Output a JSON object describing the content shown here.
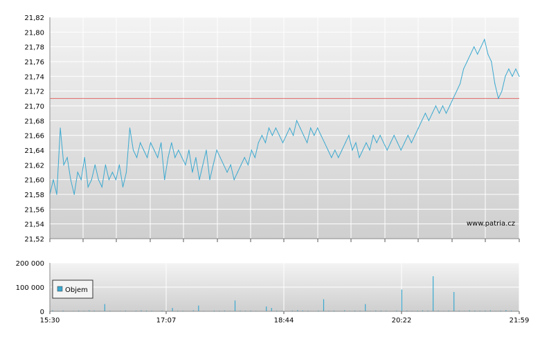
{
  "chart_data": [
    {
      "type": "line",
      "ylim": [
        21.52,
        21.82
      ],
      "y_ticks": [
        "21,82",
        "21,80",
        "21,78",
        "21,76",
        "21,74",
        "21,72",
        "21,70",
        "21,68",
        "21,66",
        "21,64",
        "21,62",
        "21,60",
        "21,58",
        "21,56",
        "21,54",
        "21,52"
      ],
      "reference_line": 21.71,
      "colors": {
        "price": "#3aa8cf",
        "reference": "#e06666",
        "grid": "#ffffff"
      },
      "watermark": "www.patria.cz",
      "series": [
        {
          "values": [
            21.58,
            21.6,
            21.58,
            21.67,
            21.62,
            21.63,
            21.6,
            21.58,
            21.61,
            21.6,
            21.63,
            21.59,
            21.6,
            21.62,
            21.6,
            21.59,
            21.62,
            21.6,
            21.61,
            21.6,
            21.62,
            21.59,
            21.61,
            21.67,
            21.64,
            21.63,
            21.65,
            21.64,
            21.63,
            21.65,
            21.64,
            21.63,
            21.65,
            21.6,
            21.63,
            21.65,
            21.63,
            21.64,
            21.63,
            21.62,
            21.64,
            21.61,
            21.63,
            21.6,
            21.62,
            21.64,
            21.6,
            21.62,
            21.64,
            21.63,
            21.62,
            21.61,
            21.62,
            21.6,
            21.61,
            21.62,
            21.63,
            21.62,
            21.64,
            21.63,
            21.65,
            21.66,
            21.65,
            21.67,
            21.66,
            21.67,
            21.66,
            21.65,
            21.66,
            21.67,
            21.66,
            21.68,
            21.67,
            21.66,
            21.65,
            21.67,
            21.66,
            21.67,
            21.66,
            21.65,
            21.64,
            21.63,
            21.64,
            21.63,
            21.64,
            21.65,
            21.66,
            21.64,
            21.65,
            21.63,
            21.64,
            21.65,
            21.64,
            21.66,
            21.65,
            21.66,
            21.65,
            21.64,
            21.65,
            21.66,
            21.65,
            21.64,
            21.65,
            21.66,
            21.65,
            21.66,
            21.67,
            21.68,
            21.69,
            21.68,
            21.69,
            21.7,
            21.69,
            21.7,
            21.69,
            21.7,
            21.71,
            21.72,
            21.73,
            21.75,
            21.76,
            21.77,
            21.78,
            21.77,
            21.78,
            21.79,
            21.77,
            21.76,
            21.73,
            21.71,
            21.72,
            21.74,
            21.75,
            21.74,
            21.75,
            21.74
          ]
        }
      ]
    },
    {
      "type": "bar",
      "ylim": [
        0,
        200000
      ],
      "y_ticks": [
        "200 000",
        "100 000",
        "0"
      ],
      "legend": {
        "label": "Objem",
        "position": "left"
      },
      "x_ticks": [
        "15:30",
        "17:07",
        "18:44",
        "20:22",
        "21:59"
      ],
      "colors": {
        "bars": "#3aa8cf"
      },
      "series": [
        {
          "name": "Objem",
          "values": [
            4000,
            2000,
            3000,
            1500,
            2000,
            3000,
            2500,
            4000,
            3000,
            2000,
            30000,
            2500,
            1500,
            2000,
            3000,
            1500,
            2500,
            4000,
            3000,
            2500,
            1500,
            3000,
            2000,
            14000,
            3000,
            2500,
            1500,
            4000,
            24000,
            2000,
            1500,
            3000,
            2500,
            3500,
            2000,
            45000,
            3000,
            2500,
            3000,
            2000,
            1500,
            20000,
            14000,
            3000,
            2500,
            1500,
            3000,
            5000,
            3500,
            2500,
            1500,
            3000,
            50000,
            2500,
            3000,
            1500,
            4000,
            2000,
            3000,
            2500,
            30000,
            2000,
            3500,
            3000,
            2500,
            1500,
            3000,
            90000,
            3000,
            2000,
            2500,
            4000,
            3000,
            145000,
            3000,
            2000,
            3000,
            80000,
            3000,
            2000,
            4000,
            3000,
            2500,
            3000,
            4000,
            2000,
            3000,
            5000,
            3000,
            2000
          ]
        }
      ]
    }
  ]
}
